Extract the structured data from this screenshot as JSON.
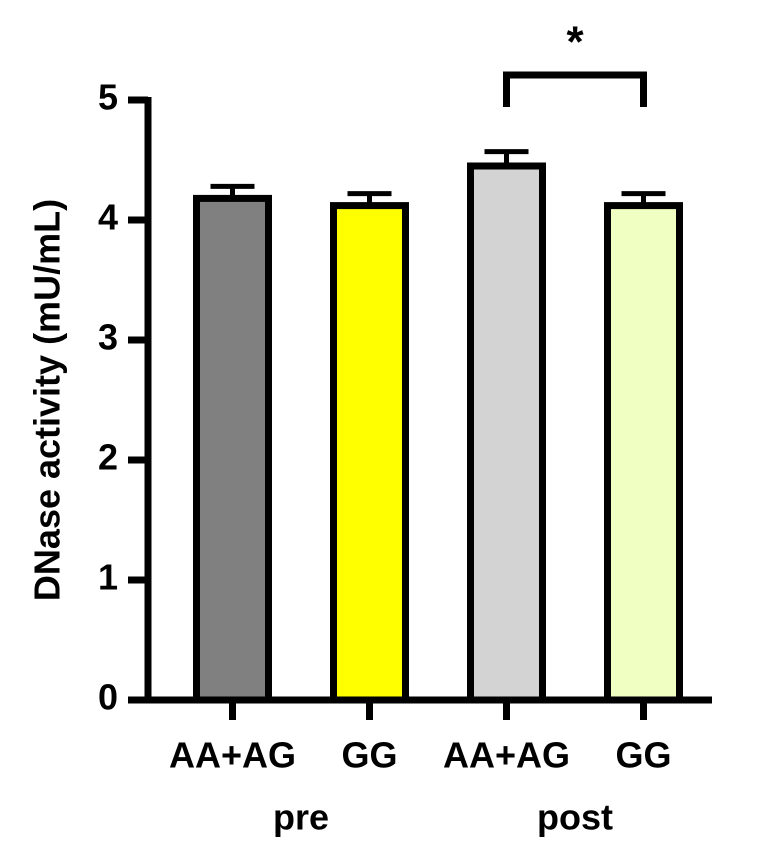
{
  "chart_data": {
    "type": "bar",
    "y_label": "DNase activity (mU/mL)",
    "categories": [
      "AA+AG",
      "GG",
      "AA+AG",
      "GG"
    ],
    "groups": [
      "pre",
      "post"
    ],
    "values": [
      4.18,
      4.12,
      4.45,
      4.12
    ],
    "errors": [
      0.1,
      0.1,
      0.12,
      0.1
    ],
    "colors": [
      "#808080",
      "#ffff00",
      "#d3d3d3",
      "#f0ffc2"
    ],
    "ylim": [
      0,
      5
    ],
    "yticks": [
      0,
      1,
      2,
      3,
      4,
      5
    ],
    "significance": [
      {
        "from": 2,
        "to": 3,
        "label": "*"
      }
    ]
  }
}
